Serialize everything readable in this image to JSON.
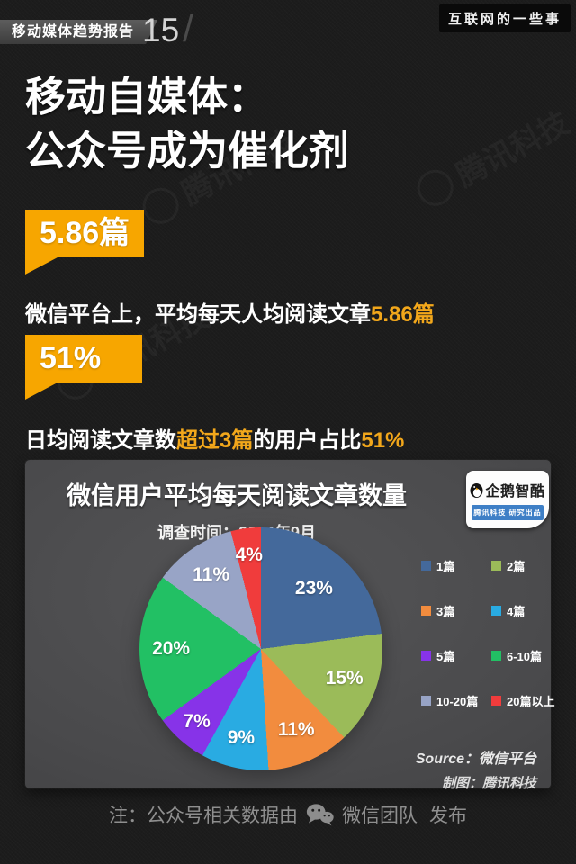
{
  "page": {
    "background": "#1c1c1c",
    "accent": "#F7A600"
  },
  "header": {
    "report_label": "移动媒体趋势报告",
    "page_number": "15",
    "slash": "/",
    "site_badge": "互联网的一些事"
  },
  "title": {
    "line1": "移动自媒体：",
    "line2": "公众号成为催化剂"
  },
  "stats": [
    {
      "badge": "5.86篇",
      "s0": "微信平台上，平均每天人均阅读文章",
      "s1": "5.86篇",
      "s2": "",
      "s3": ""
    },
    {
      "badge": "51%",
      "s0": "日均阅读文章数",
      "s1": "超过3篇",
      "s2": "的用户占比",
      "s3": "51%"
    }
  ],
  "panel": {
    "title": "微信用户平均每天阅读文章数量",
    "subtitle": "调查时间：2014年9月",
    "logo": {
      "name": "企鹅智酷",
      "tagline": "腾讯科技 研究出品"
    },
    "source_line1": "Source：微信平台",
    "source_line2": "制图：腾讯科技"
  },
  "chart_data": {
    "type": "pie",
    "title": "微信用户平均每天阅读文章数量",
    "subtitle": "调查时间：2014年9月",
    "labels": [
      "1篇",
      "2篇",
      "3篇",
      "4篇",
      "5篇",
      "6-10篇",
      "10-20篇",
      "20篇以上"
    ],
    "values": [
      23,
      15,
      11,
      9,
      7,
      20,
      11,
      4
    ],
    "colors": [
      "#44699B",
      "#9BBB59",
      "#F28C3E",
      "#29ABE2",
      "#8733E8",
      "#22C064",
      "#98A4C6",
      "#F03C3C"
    ],
    "start_angle_deg": 0,
    "direction": "clockwise",
    "legend_position": "right",
    "data_label_format": "percent"
  },
  "footer": {
    "note_prefix": "注：公众号相关数据由",
    "wechat": "微信团队",
    "note_suffix": "发布"
  },
  "watermark": {
    "text": "腾讯科技"
  }
}
